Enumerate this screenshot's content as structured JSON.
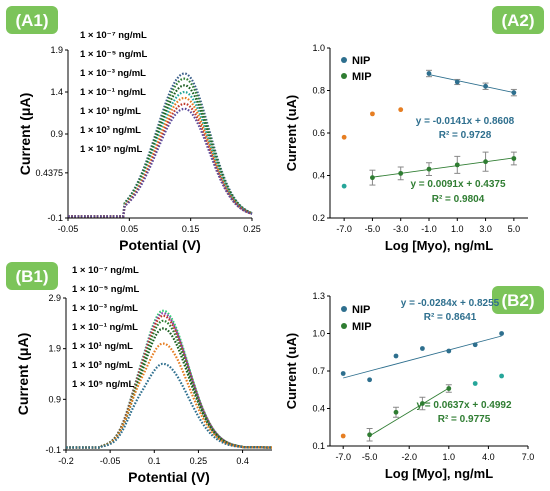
{
  "panels": {
    "a1": "(A1)",
    "a2": "(A2)",
    "b1": "(B1)",
    "b2": "(B2)"
  },
  "colors": {
    "panel_label_bg": "#7cc45a",
    "nip": "#2e6f8e",
    "mip": "#2f7d32",
    "orange_points": "#e67e22",
    "trend_nip": "#2e6f8e",
    "trend_mip": "#2f7d32"
  },
  "chart_data": [
    {
      "id": "A1",
      "type": "line",
      "xlabel": "Potential (V)",
      "ylabel": "Current (μA)",
      "xlim": [
        -0.05,
        0.25
      ],
      "ylim": [
        -0.1,
        1.9
      ],
      "xticks": [
        "-0.05",
        "0.05",
        "0.15",
        "0.25"
      ],
      "yticks": [
        "-0.1",
        "0.4375",
        "0.9",
        "1.4",
        "1.9"
      ],
      "ytick_values": [
        -0.1,
        0.4375,
        0.9,
        1.4,
        1.9
      ],
      "xtick_values": [
        -0.05,
        0.05,
        0.15,
        0.25
      ],
      "legend": [
        "1 × 10⁻⁷ ng/mL",
        "1 × 10⁻⁵ ng/mL",
        "1 × 10⁻³ ng/mL",
        "1 × 10⁻¹ ng/mL",
        "1 × 10¹ ng/mL",
        "1 × 10³ ng/mL",
        "1 × 10⁵ ng/mL"
      ],
      "peak_x": 0.14,
      "peak_values": [
        1.62,
        1.56,
        1.48,
        1.4,
        1.33,
        1.26,
        1.2
      ],
      "series_colors": [
        "#3a5f8a",
        "#2e7d32",
        "#1b5e20",
        "#26a69a",
        "#e67e22",
        "#c0392b",
        "#5b4a9b"
      ]
    },
    {
      "id": "A2",
      "type": "scatter",
      "xlabel": "Log [Myo), ng/mL",
      "ylabel": "Current (uA)",
      "xlim": [
        -8,
        6
      ],
      "ylim": [
        0.2,
        1.0
      ],
      "xticks": [
        "-7.0",
        "-5.0",
        "-3.0",
        "-1.0",
        "1.0",
        "3.0",
        "5.0"
      ],
      "yticks": [
        "0.2",
        "0.4",
        "0.6",
        "0.8",
        "1.0"
      ],
      "legend": [
        "NIP",
        "MIP"
      ],
      "series": [
        {
          "name": "NIP",
          "x": [
            -1,
            1,
            3,
            5
          ],
          "y": [
            0.88,
            0.84,
            0.82,
            0.79
          ],
          "err": [
            0.015,
            0.012,
            0.015,
            0.015
          ]
        },
        {
          "name": "MIP",
          "x": [
            -5,
            -3,
            -1,
            1,
            3,
            5
          ],
          "y": [
            0.39,
            0.41,
            0.43,
            0.45,
            0.465,
            0.48
          ],
          "err": [
            0.035,
            0.03,
            0.03,
            0.04,
            0.045,
            0.03
          ]
        },
        {
          "x": [
            -7,
            -5,
            -3
          ],
          "y": [
            0.58,
            0.69,
            0.71
          ]
        },
        {
          "x": [
            -7
          ],
          "y": [
            0.35
          ]
        }
      ],
      "equations": [
        {
          "text": "y = -0.0141x + 0.8608",
          "r2": "R² = 0.9728",
          "series": "NIP"
        },
        {
          "text": "y = 0.0091x + 0.4375",
          "r2": "R² = 0.9804",
          "series": "MIP"
        }
      ]
    },
    {
      "id": "B1",
      "type": "line",
      "xlabel": "Potential (V)",
      "ylabel": "Current (μA)",
      "xlim": [
        -0.2,
        0.5
      ],
      "ylim": [
        -0.1,
        2.9
      ],
      "xticks": [
        "-0.2",
        "-0.05",
        "0.1",
        "0.25",
        "0.4"
      ],
      "xtick_values": [
        -0.2,
        -0.05,
        0.1,
        0.25,
        0.4
      ],
      "yticks": [
        "-0.1",
        "0.9",
        "1.9",
        "2.9"
      ],
      "ytick_values": [
        -0.1,
        0.9,
        1.9,
        2.9
      ],
      "legend": [
        "1 × 10⁻⁷ ng/mL",
        "1 × 10⁻⁵ ng/mL",
        "1 × 10⁻³ ng/mL",
        "1 × 10⁻¹ ng/mL",
        "1 × 10¹ ng/mL",
        "1 × 10³ ng/mL",
        "1 × 10⁵ ng/mL"
      ],
      "peak_x": 0.13,
      "peak_values": [
        2.65,
        2.6,
        2.55,
        2.45,
        2.3,
        2.0,
        1.6
      ],
      "series_colors": [
        "#2ecc71",
        "#8e44ad",
        "#c0392b",
        "#2e7d32",
        "#1b5e20",
        "#e67e22",
        "#2e6f8e"
      ]
    },
    {
      "id": "B2",
      "type": "scatter",
      "xlabel": "Log [Myo], ng/mL",
      "ylabel": "Current (uA)",
      "xlim": [
        -8,
        7
      ],
      "ylim": [
        0.1,
        1.3
      ],
      "xticks": [
        "-7.0",
        "-5.0",
        "-2.0",
        "1.0",
        "4.0",
        "7.0"
      ],
      "yticks": [
        "0.1",
        "0.4",
        "0.7",
        "1.0",
        "1.3"
      ],
      "legend": [
        "NIP",
        "MIP"
      ],
      "series": [
        {
          "name": "NIP",
          "x": [
            -7,
            -5,
            -3,
            -1,
            1,
            3,
            5
          ],
          "y": [
            0.68,
            0.63,
            0.82,
            0.88,
            0.86,
            0.91,
            1.0
          ]
        },
        {
          "name": "MIP",
          "x": [
            -5,
            -3,
            -1,
            1
          ],
          "y": [
            0.19,
            0.37,
            0.44,
            0.56
          ],
          "err": [
            0.05,
            0.04,
            0.05,
            0.03
          ]
        },
        {
          "x": [
            -7
          ],
          "y": [
            0.18
          ]
        },
        {
          "x": [
            3,
            5
          ],
          "y": [
            0.6,
            0.66
          ]
        }
      ],
      "equations": [
        {
          "text": "y = -0.0284x + 0.8255",
          "r2": "R² = 0.8641",
          "series": "NIP"
        },
        {
          "text": "y = 0.0637x + 0.4992",
          "r2": "R² = 0.9775",
          "series": "MIP"
        }
      ]
    }
  ]
}
